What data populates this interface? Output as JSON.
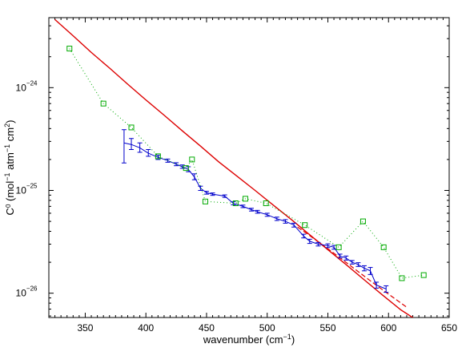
{
  "chart_data": {
    "type": "line",
    "xlabel": "wavenumber (cm",
    "xlabel_sup": "−1",
    "xlabel_close": ")",
    "ylabel_parts": [
      "C",
      "0",
      " (mol",
      "−1",
      " atm",
      "−1",
      " cm",
      "2",
      ")"
    ],
    "xlim": [
      320,
      650
    ],
    "ylim": [
      5.8e-27,
      4.8e-24
    ],
    "yscale": "log",
    "grid": false,
    "x_ticks": [
      {
        "value": 350,
        "label": "350"
      },
      {
        "value": 400,
        "label": "400"
      },
      {
        "value": 450,
        "label": "450"
      },
      {
        "value": 500,
        "label": "500"
      },
      {
        "value": 550,
        "label": "550"
      },
      {
        "value": 600,
        "label": "600"
      },
      {
        "value": 650,
        "label": "650"
      }
    ],
    "y_ticks": [
      {
        "value": 1e-24,
        "mantissa": "10",
        "exponent": "−24"
      },
      {
        "value": 1e-25,
        "mantissa": "10",
        "exponent": "−25"
      },
      {
        "value": 1e-26,
        "mantissa": "10",
        "exponent": "−26"
      }
    ],
    "series": [
      {
        "style": "red-solid",
        "color": "#dd0000",
        "x": [
          325,
          340,
          355,
          370,
          385,
          400,
          415,
          430,
          445,
          460,
          475,
          490,
          505,
          520,
          535,
          550,
          565,
          580,
          595,
          610,
          625
        ],
        "y": [
          4.6e-24,
          3.2e-24,
          2.2e-24,
          1.55e-24,
          1.08e-24,
          7.6e-25,
          5.4e-25,
          3.8e-25,
          2.7e-25,
          1.9e-25,
          1.38e-25,
          1e-25,
          7.2e-26,
          5.2e-26,
          3.7e-26,
          2.65e-26,
          1.9e-26,
          1.35e-26,
          9.6e-27,
          6.9e-27,
          5.3e-27
        ]
      },
      {
        "style": "red-dashed",
        "color": "#dd0000",
        "x": [
          525,
          540,
          555,
          570,
          585,
          600,
          615
        ],
        "y": [
          4.4e-26,
          3.3e-26,
          2.45e-26,
          1.8e-26,
          1.32e-26,
          9.8e-27,
          7.3e-27
        ]
      },
      {
        "style": "blue-errorbars",
        "color": "#0000cc",
        "x": [
          382,
          388,
          395,
          402,
          410,
          418,
          425,
          430,
          435,
          440,
          445,
          450,
          455,
          465,
          472,
          480,
          487,
          492,
          500,
          508,
          515,
          522,
          530,
          535,
          542,
          550,
          555,
          560,
          565,
          570,
          575,
          580,
          585,
          590,
          598
        ],
        "y": [
          2.9e-25,
          2.8e-25,
          2.6e-25,
          2.3e-25,
          2.1e-25,
          1.95e-25,
          1.8e-25,
          1.7e-25,
          1.6e-25,
          1.35e-25,
          1.05e-25,
          9.5e-26,
          9.2e-26,
          8.8e-26,
          7.5e-26,
          7e-26,
          6.5e-26,
          6.2e-26,
          5.8e-26,
          5.3e-26,
          5e-26,
          4.6e-26,
          3.6e-26,
          3.2e-26,
          3e-26,
          2.9e-26,
          2.8e-26,
          2.3e-26,
          2.2e-26,
          2e-26,
          1.9e-26,
          1.75e-26,
          1.65e-26,
          1.2e-26,
          1.1e-26
        ],
        "err_low": [
          1.85e-25,
          2.5e-25,
          2.35e-25,
          2.15e-25,
          2e-25,
          1.88e-25,
          1.74e-25,
          1.64e-25,
          1.52e-25,
          1.27e-25,
          1e-25,
          9.2e-26,
          8.95e-26,
          8.55e-26,
          7.25e-26,
          6.8e-26,
          6.3e-26,
          6e-26,
          5.6e-26,
          5.1e-26,
          4.8e-26,
          4.4e-26,
          3.45e-26,
          3.05e-26,
          2.88e-26,
          2.78e-26,
          2.68e-26,
          2.2e-26,
          2.1e-26,
          1.92e-26,
          1.82e-26,
          1.65e-26,
          1.52e-26,
          1.12e-26,
          1.02e-26
        ],
        "err_high": [
          3.9e-25,
          3.2e-25,
          2.9e-25,
          2.5e-25,
          2.2e-25,
          2.02e-25,
          1.86e-25,
          1.77e-25,
          1.7e-25,
          1.45e-25,
          1.1e-25,
          9.8e-26,
          9.45e-26,
          9.05e-26,
          7.75e-26,
          7.2e-26,
          6.7e-26,
          6.4e-26,
          6e-26,
          5.5e-26,
          5.2e-26,
          4.8e-26,
          3.75e-26,
          3.35e-26,
          3.12e-26,
          3.02e-26,
          2.92e-26,
          2.4e-26,
          2.3e-26,
          2.08e-26,
          1.98e-26,
          1.85e-26,
          1.78e-26,
          1.28e-26,
          1.18e-26
        ]
      },
      {
        "style": "green-dotted-squares",
        "color": "#00aa00",
        "x": [
          337,
          365,
          388,
          410,
          433,
          438,
          449,
          474,
          482,
          499,
          531,
          559,
          579,
          596,
          611,
          629
        ],
        "y": [
          2.4e-24,
          7e-25,
          4.1e-25,
          2.15e-25,
          1.65e-25,
          2e-25,
          7.8e-26,
          7.5e-26,
          8.3e-26,
          7.5e-26,
          4.6e-26,
          2.8e-26,
          5e-26,
          2.8e-26,
          1.4e-26,
          1.5e-26
        ]
      }
    ]
  }
}
